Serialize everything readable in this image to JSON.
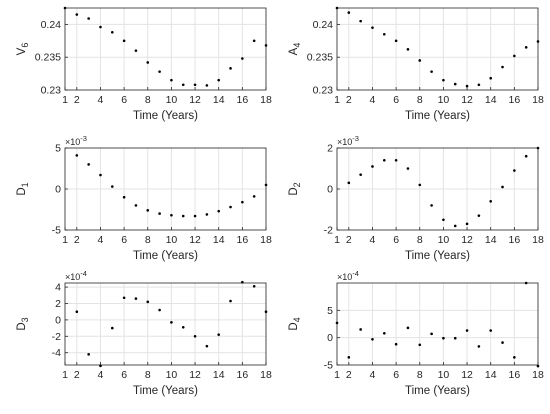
{
  "chart_data": [
    {
      "type": "scatter",
      "ylabel_main": "V",
      "ylabel_sub": "6",
      "xlabel": "Time (Years)",
      "xlim": [
        1,
        18
      ],
      "ylim": [
        0.23,
        0.2425
      ],
      "xticks": [
        1,
        2,
        4,
        6,
        8,
        10,
        12,
        14,
        16,
        18
      ],
      "yticks": [
        0.23,
        0.235,
        0.24
      ],
      "yticklabels": [
        "0.23",
        "0.235",
        "0.24"
      ],
      "exponent_base": "",
      "exponent_power": "",
      "x": [
        1,
        2,
        3,
        4,
        5,
        6,
        7,
        8,
        9,
        10,
        11,
        12,
        13,
        14,
        15,
        16,
        17,
        18
      ],
      "y": [
        0.2425,
        0.2415,
        0.2409,
        0.2396,
        0.2388,
        0.2375,
        0.236,
        0.2342,
        0.2328,
        0.2315,
        0.2308,
        0.2308,
        0.2307,
        0.2315,
        0.2333,
        0.2348,
        0.2375,
        0.2368
      ]
    },
    {
      "type": "scatter",
      "ylabel_main": "A",
      "ylabel_sub": "4",
      "xlabel": "Time (Years)",
      "xlim": [
        1,
        18
      ],
      "ylim": [
        0.23,
        0.2425
      ],
      "xticks": [
        1,
        2,
        4,
        6,
        8,
        10,
        12,
        14,
        16,
        18
      ],
      "yticks": [
        0.23,
        0.235,
        0.24
      ],
      "yticklabels": [
        "0.23",
        "0.235",
        "0.24"
      ],
      "exponent_base": "",
      "exponent_power": "",
      "x": [
        1,
        2,
        3,
        4,
        5,
        6,
        7,
        8,
        9,
        10,
        11,
        12,
        13,
        14,
        15,
        16,
        17,
        18
      ],
      "y": [
        0.2425,
        0.2418,
        0.2405,
        0.2395,
        0.2385,
        0.2375,
        0.2362,
        0.2345,
        0.2328,
        0.2315,
        0.2309,
        0.2306,
        0.2308,
        0.2318,
        0.2335,
        0.2352,
        0.2365,
        0.2374
      ]
    },
    {
      "type": "scatter",
      "ylabel_main": "D",
      "ylabel_sub": "1",
      "xlabel": "Time (Years)",
      "xlim": [
        1,
        18
      ],
      "ylim": [
        -5,
        5
      ],
      "xticks": [
        1,
        2,
        4,
        6,
        8,
        10,
        12,
        14,
        16,
        18
      ],
      "yticks": [
        -5,
        0,
        5
      ],
      "yticklabels": [
        "-5",
        "0",
        "5"
      ],
      "exponent_base": "×10",
      "exponent_power": "-3",
      "x": [
        2,
        3,
        4,
        5,
        6,
        7,
        8,
        9,
        10,
        11,
        12,
        13,
        14,
        15,
        16,
        17,
        18
      ],
      "y": [
        4.1,
        3.0,
        1.7,
        0.3,
        -1.0,
        -2.0,
        -2.6,
        -3.0,
        -3.2,
        -3.3,
        -3.3,
        -3.1,
        -2.7,
        -2.2,
        -1.6,
        -0.9,
        0.5
      ]
    },
    {
      "type": "scatter",
      "ylabel_main": "D",
      "ylabel_sub": "2",
      "xlabel": "Time (Years)",
      "xlim": [
        1,
        18
      ],
      "ylim": [
        -2,
        2
      ],
      "xticks": [
        1,
        2,
        4,
        6,
        8,
        10,
        12,
        14,
        16,
        18
      ],
      "yticks": [
        -2,
        0,
        2
      ],
      "yticklabels": [
        "-2",
        "0",
        "2"
      ],
      "exponent_base": "×10",
      "exponent_power": "-3",
      "x": [
        2,
        3,
        4,
        5,
        6,
        7,
        8,
        9,
        10,
        11,
        12,
        13,
        14,
        15,
        16,
        17,
        18
      ],
      "y": [
        0.3,
        0.7,
        1.1,
        1.4,
        1.4,
        1.0,
        0.2,
        -0.8,
        -1.5,
        -1.8,
        -1.7,
        -1.3,
        -0.6,
        0.1,
        0.9,
        1.6,
        2.0
      ]
    },
    {
      "type": "scatter",
      "ylabel_main": "D",
      "ylabel_sub": "3",
      "xlabel": "Time (Years)",
      "xlim": [
        1,
        18
      ],
      "ylim": [
        -5.5,
        4.5
      ],
      "xticks": [
        1,
        2,
        4,
        6,
        8,
        10,
        12,
        14,
        16,
        18
      ],
      "yticks": [
        -4,
        -2,
        0,
        2,
        4
      ],
      "yticklabels": [
        "-4",
        "-2",
        "0",
        "2",
        "4"
      ],
      "exponent_base": "×10",
      "exponent_power": "-4",
      "x": [
        2,
        3,
        4,
        5,
        6,
        7,
        8,
        9,
        10,
        11,
        12,
        13,
        14,
        15,
        16,
        17,
        18
      ],
      "y": [
        1.0,
        -4.2,
        -5.6,
        -1.0,
        2.7,
        2.6,
        2.2,
        1.2,
        -0.3,
        -0.9,
        -2.0,
        -3.2,
        -1.8,
        2.3,
        4.6,
        4.1,
        1.0
      ]
    },
    {
      "type": "scatter",
      "ylabel_main": "D",
      "ylabel_sub": "4",
      "xlabel": "Time (Years)",
      "xlim": [
        1,
        18
      ],
      "ylim": [
        -5,
        10
      ],
      "xticks": [
        1,
        2,
        4,
        6,
        8,
        10,
        12,
        14,
        16,
        18
      ],
      "yticks": [
        -5,
        0,
        5
      ],
      "yticklabels": [
        "-5",
        "0",
        "5"
      ],
      "exponent_base": "×10",
      "exponent_power": "-4",
      "x": [
        1,
        2,
        3,
        4,
        5,
        6,
        7,
        8,
        9,
        10,
        11,
        12,
        13,
        14,
        15,
        16,
        17,
        18
      ],
      "y": [
        2.7,
        -3.6,
        1.5,
        -0.3,
        0.8,
        -1.2,
        1.8,
        -1.3,
        0.7,
        -0.1,
        -0.1,
        1.3,
        -1.6,
        1.3,
        -0.9,
        -3.6,
        10.0,
        -5.2
      ]
    }
  ]
}
